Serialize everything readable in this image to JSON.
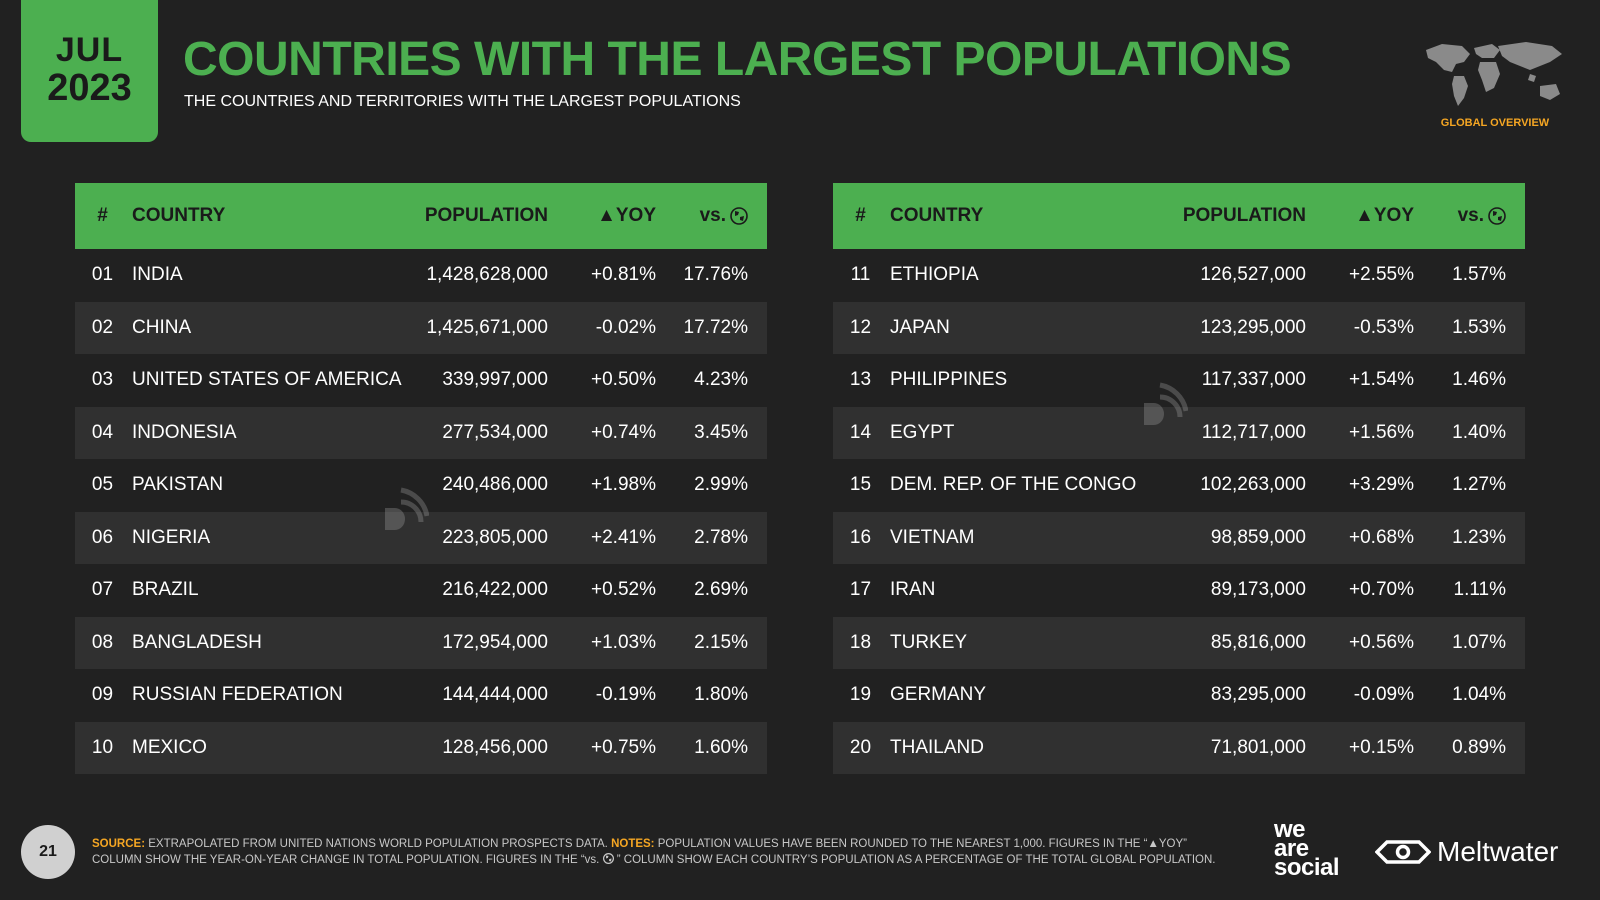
{
  "badge": {
    "month": "JUL",
    "year": "2023"
  },
  "title": "COUNTRIES WITH THE LARGEST POPULATIONS",
  "subtitle": "THE COUNTRIES AND TERRITORIES WITH THE LARGEST POPULATIONS",
  "global_label": "GLOBAL OVERVIEW",
  "headers": {
    "num": "#",
    "country": "COUNTRY",
    "population": "POPULATION",
    "yoy": "▲YOY",
    "vs": "vs."
  },
  "left_rows": [
    {
      "num": "01",
      "country": "INDIA",
      "population": "1,428,628,000",
      "yoy": "+0.81%",
      "vs": "17.76%"
    },
    {
      "num": "02",
      "country": "CHINA",
      "population": "1,425,671,000",
      "yoy": "-0.02%",
      "vs": "17.72%"
    },
    {
      "num": "03",
      "country": "UNITED STATES OF AMERICA",
      "population": "339,997,000",
      "yoy": "+0.50%",
      "vs": "4.23%"
    },
    {
      "num": "04",
      "country": "INDONESIA",
      "population": "277,534,000",
      "yoy": "+0.74%",
      "vs": "3.45%"
    },
    {
      "num": "05",
      "country": "PAKISTAN",
      "population": "240,486,000",
      "yoy": "+1.98%",
      "vs": "2.99%"
    },
    {
      "num": "06",
      "country": "NIGERIA",
      "population": "223,805,000",
      "yoy": "+2.41%",
      "vs": "2.78%"
    },
    {
      "num": "07",
      "country": "BRAZIL",
      "population": "216,422,000",
      "yoy": "+0.52%",
      "vs": "2.69%"
    },
    {
      "num": "08",
      "country": "BANGLADESH",
      "population": "172,954,000",
      "yoy": "+1.03%",
      "vs": "2.15%"
    },
    {
      "num": "09",
      "country": "RUSSIAN FEDERATION",
      "population": "144,444,000",
      "yoy": "-0.19%",
      "vs": "1.80%"
    },
    {
      "num": "10",
      "country": "MEXICO",
      "population": "128,456,000",
      "yoy": "+0.75%",
      "vs": "1.60%"
    }
  ],
  "right_rows": [
    {
      "num": "11",
      "country": "ETHIOPIA",
      "population": "126,527,000",
      "yoy": "+2.55%",
      "vs": "1.57%"
    },
    {
      "num": "12",
      "country": "JAPAN",
      "population": "123,295,000",
      "yoy": "-0.53%",
      "vs": "1.53%"
    },
    {
      "num": "13",
      "country": "PHILIPPINES",
      "population": "117,337,000",
      "yoy": "+1.54%",
      "vs": "1.46%"
    },
    {
      "num": "14",
      "country": "EGYPT",
      "population": "112,717,000",
      "yoy": "+1.56%",
      "vs": "1.40%"
    },
    {
      "num": "15",
      "country": "DEM. REP. OF THE CONGO",
      "population": "102,263,000",
      "yoy": "+3.29%",
      "vs": "1.27%"
    },
    {
      "num": "16",
      "country": "VIETNAM",
      "population": "98,859,000",
      "yoy": "+0.68%",
      "vs": "1.23%"
    },
    {
      "num": "17",
      "country": "IRAN",
      "population": "89,173,000",
      "yoy": "+0.70%",
      "vs": "1.11%"
    },
    {
      "num": "18",
      "country": "TURKEY",
      "population": "85,816,000",
      "yoy": "+0.56%",
      "vs": "1.07%"
    },
    {
      "num": "19",
      "country": "GERMANY",
      "population": "83,295,000",
      "yoy": "-0.09%",
      "vs": "1.04%"
    },
    {
      "num": "20",
      "country": "THAILAND",
      "population": "71,801,000",
      "yoy": "+0.15%",
      "vs": "0.89%"
    }
  ],
  "footer": {
    "page": "21",
    "source_label": "SOURCE:",
    "source_text": "EXTRAPOLATED FROM UNITED NATIONS WORLD POPULATION PROSPECTS DATA.",
    "notes_label": "NOTES:",
    "notes_text": "POPULATION VALUES HAVE BEEN ROUNDED TO THE NEAREST 1,000. FIGURES IN THE “▲YOY” COLUMN SHOW THE YEAR-ON-YEAR CHANGE IN TOTAL POPULATION. FIGURES IN THE “vs. ",
    "notes_text_2": " ” COLUMN SHOW EACH COUNTRY’S POPULATION AS A PERCENTAGE OF THE TOTAL GLOBAL POPULATION.",
    "logo_we": "we",
    "logo_are": "are",
    "logo_social": "social",
    "logo_meltwater": "Meltwater"
  },
  "colors": {
    "accent": "#4caf50",
    "background": "#212121",
    "row_alt": "#303030",
    "highlight": "#f5a623"
  }
}
